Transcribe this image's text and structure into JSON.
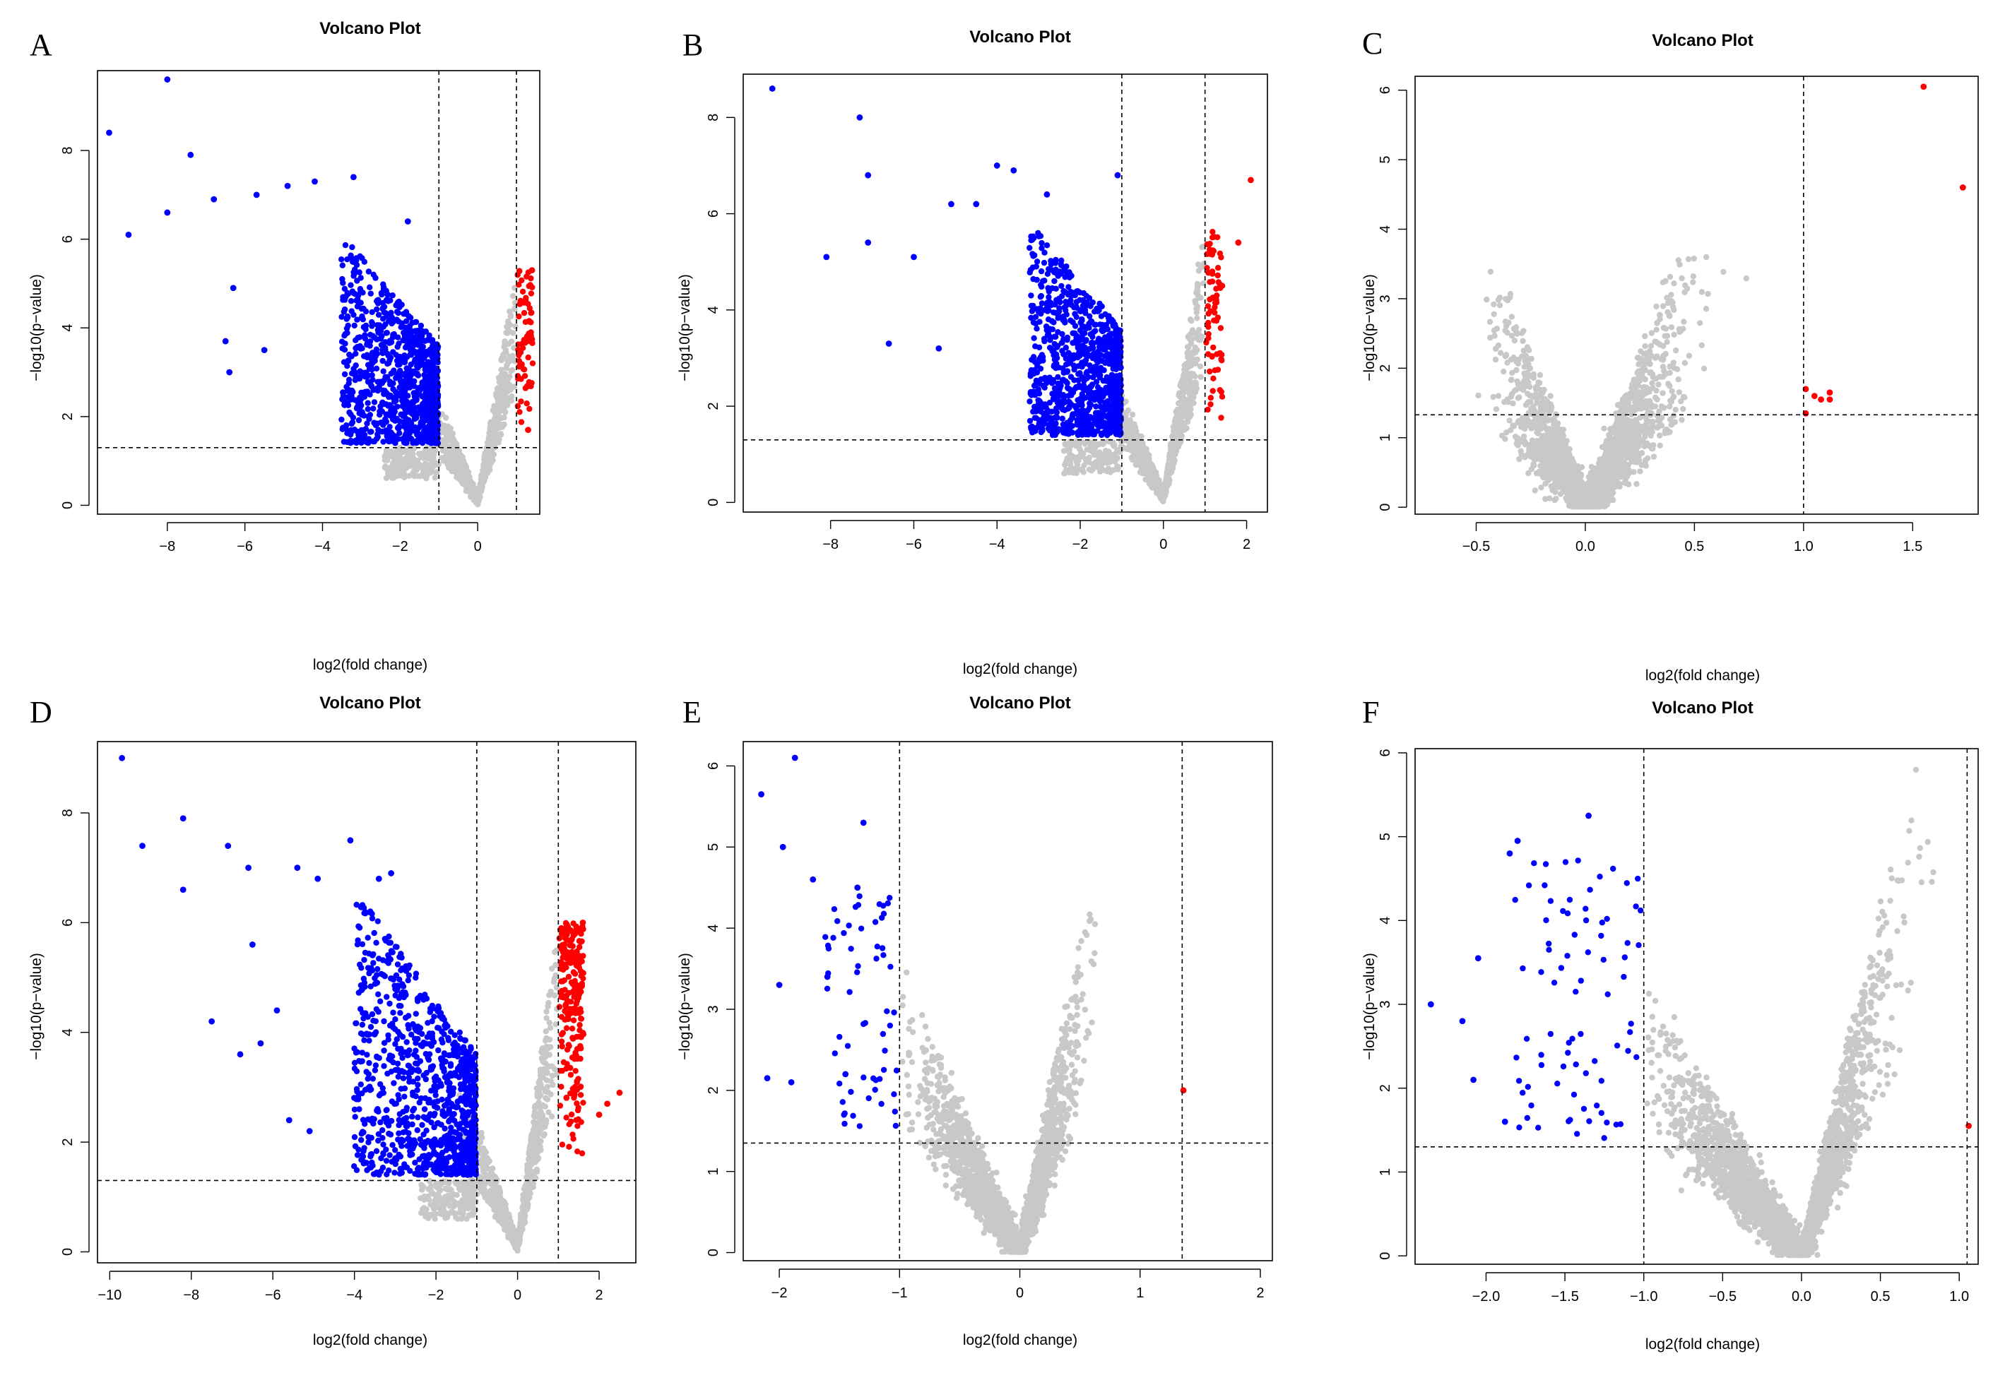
{
  "figure": {
    "description_free": true
  },
  "colors": {
    "down": "#0000ff",
    "up": "#ff0000",
    "ns": "#c8c8c8"
  },
  "chart_data": [
    {
      "id": "A",
      "letter": "A",
      "type": "scatter",
      "title": "Volcano Plot",
      "xlabel": "log2(fold change)",
      "ylabel": "−log10(p−value)",
      "xlim": [
        -9.8,
        1.6
      ],
      "ylim": [
        -0.2,
        9.8
      ],
      "xticks": [
        -8,
        -6,
        -4,
        -2,
        0
      ],
      "xtick_labels": [
        "−8",
        "−6",
        "−4",
        "−2",
        "0"
      ],
      "yticks": [
        0,
        2,
        4,
        6,
        8
      ],
      "ytick_labels": [
        "0",
        "2",
        "4",
        "6",
        "8"
      ],
      "vlines": [
        -1,
        1
      ],
      "hline": 1.3,
      "up_range": [
        1,
        1.4
      ],
      "down_min": -3.5,
      "notable_points": [
        [
          -8,
          9.6
        ],
        [
          -9.5,
          8.4
        ],
        [
          -8,
          6.6
        ],
        [
          -9,
          6.1
        ],
        [
          -7.4,
          7.9
        ],
        [
          -6.8,
          6.9
        ],
        [
          -5.7,
          7.0
        ],
        [
          -4.9,
          7.2
        ],
        [
          -4.2,
          7.3
        ],
        [
          -3.2,
          7.4
        ],
        [
          -6.4,
          3.0
        ],
        [
          -6.5,
          3.7
        ],
        [
          -5.5,
          3.5
        ],
        [
          -6.3,
          4.9
        ],
        [
          -1.8,
          6.4
        ]
      ],
      "red_points": [
        [
          1.4,
          5.3
        ],
        [
          1.3,
          1.7
        ]
      ]
    },
    {
      "id": "B",
      "letter": "B",
      "type": "scatter",
      "title": "Volcano Plot",
      "xlabel": "log2(fold change)",
      "ylabel": "−log10(p−value)",
      "xlim": [
        -10.1,
        2.5
      ],
      "ylim": [
        -0.2,
        8.9
      ],
      "xticks": [
        -8,
        -6,
        -4,
        -2,
        0,
        2
      ],
      "xtick_labels": [
        "−8",
        "−6",
        "−4",
        "−2",
        "0",
        "2"
      ],
      "yticks": [
        0,
        2,
        4,
        6,
        8
      ],
      "ytick_labels": [
        "0",
        "2",
        "4",
        "6",
        "8"
      ],
      "vlines": [
        -1,
        1
      ],
      "hline": 1.3,
      "up_range": [
        1,
        1.4
      ],
      "down_min": -3.2,
      "notable_points": [
        [
          -9.4,
          8.6
        ],
        [
          -7.3,
          8.0
        ],
        [
          -7.1,
          6.8
        ],
        [
          -8.1,
          5.1
        ],
        [
          -7.1,
          5.4
        ],
        [
          -6.6,
          3.3
        ],
        [
          -6.0,
          5.1
        ],
        [
          -5.4,
          3.2
        ],
        [
          -4,
          7.0
        ],
        [
          -3.6,
          6.9
        ],
        [
          -4.5,
          6.2
        ],
        [
          -5.1,
          6.2
        ],
        [
          -2.8,
          6.4
        ],
        [
          -1.1,
          6.8
        ]
      ],
      "red_points": [
        [
          2.1,
          6.7
        ],
        [
          1.8,
          5.4
        ]
      ]
    },
    {
      "id": "C",
      "letter": "C",
      "type": "scatter",
      "title": "Volcano Plot",
      "xlabel": "log2(fold change)",
      "ylabel": "−log10(p−value)",
      "xlim": [
        -0.78,
        1.8
      ],
      "ylim": [
        -0.1,
        6.2
      ],
      "xticks": [
        -0.5,
        0.0,
        0.5,
        1.0,
        1.5
      ],
      "xtick_labels": [
        "−0.5",
        "0.0",
        "0.5",
        "1.0",
        "1.5"
      ],
      "yticks": [
        0,
        1,
        2,
        3,
        4,
        5,
        6
      ],
      "ytick_labels": [
        "0",
        "1",
        "2",
        "3",
        "4",
        "5",
        "6"
      ],
      "vlines": [
        1.0
      ],
      "hline": 1.33,
      "notable_points": [],
      "red_points": [
        [
          1.55,
          6.05
        ],
        [
          1.73,
          4.6
        ],
        [
          1.01,
          1.7
        ],
        [
          1.01,
          1.35
        ],
        [
          1.05,
          1.6
        ],
        [
          1.08,
          1.55
        ],
        [
          1.12,
          1.65
        ],
        [
          1.12,
          1.55
        ]
      ]
    },
    {
      "id": "D",
      "letter": "D",
      "type": "scatter",
      "title": "Volcano Plot",
      "xlabel": "log2(fold change)",
      "ylabel": "−log10(p−value)",
      "xlim": [
        -10.3,
        2.9
      ],
      "ylim": [
        -0.2,
        9.3
      ],
      "xticks": [
        -10,
        -8,
        -6,
        -4,
        -2,
        0,
        2
      ],
      "xtick_labels": [
        "−10",
        "−8",
        "−6",
        "−4",
        "−2",
        "0",
        "2"
      ],
      "yticks": [
        0,
        2,
        4,
        6,
        8
      ],
      "ytick_labels": [
        "0",
        "2",
        "4",
        "6",
        "8"
      ],
      "vlines": [
        -1,
        1
      ],
      "hline": 1.3,
      "up_range": [
        1,
        1.6
      ],
      "down_min": -4.0,
      "notable_points": [
        [
          -9.7,
          9.0
        ],
        [
          -9.2,
          7.4
        ],
        [
          -8.2,
          7.9
        ],
        [
          -8.2,
          6.6
        ],
        [
          -7.1,
          7.4
        ],
        [
          -6.6,
          7.0
        ],
        [
          -6.5,
          5.6
        ],
        [
          -5.4,
          7.0
        ],
        [
          -4.9,
          6.8
        ],
        [
          -4.1,
          7.5
        ],
        [
          -7.5,
          4.2
        ],
        [
          -6.8,
          3.6
        ],
        [
          -6.3,
          3.8
        ],
        [
          -5.9,
          4.4
        ],
        [
          -5.6,
          2.4
        ],
        [
          -5.1,
          2.2
        ],
        [
          -3.1,
          6.9
        ],
        [
          -3.4,
          6.8
        ]
      ],
      "red_points": [
        [
          2.5,
          2.9
        ],
        [
          2.2,
          2.7
        ],
        [
          2.0,
          2.5
        ],
        [
          1.6,
          6.0
        ]
      ]
    },
    {
      "id": "E",
      "letter": "E",
      "type": "scatter",
      "title": "Volcano Plot",
      "xlabel": "log2(fold change)",
      "ylabel": "−log10(p−value)",
      "xlim": [
        -2.3,
        2.1
      ],
      "ylim": [
        -0.1,
        6.3
      ],
      "xticks": [
        -2,
        -1,
        0,
        1,
        2
      ],
      "xtick_labels": [
        "−2",
        "−1",
        "0",
        "1",
        "2"
      ],
      "yticks": [
        0,
        1,
        2,
        3,
        4,
        5,
        6
      ],
      "ytick_labels": [
        "0",
        "1",
        "2",
        "3",
        "4",
        "5",
        "6"
      ],
      "vlines": [
        -1,
        1.35
      ],
      "hline": 1.35,
      "notable_points": [
        [
          -1.87,
          6.1
        ],
        [
          -2.15,
          5.65
        ],
        [
          -1.97,
          5.0
        ],
        [
          -1.3,
          5.3
        ],
        [
          -1.9,
          2.1
        ],
        [
          -2.1,
          2.15
        ],
        [
          -2.0,
          3.3
        ],
        [
          -1.72,
          4.6
        ],
        [
          -1.6,
          3.4
        ],
        [
          -1.45,
          2.2
        ],
        [
          -1.35,
          4.5
        ]
      ],
      "red_points": [
        [
          1.36,
          2.0
        ]
      ]
    },
    {
      "id": "F",
      "letter": "F",
      "type": "scatter",
      "title": "Volcano Plot",
      "xlabel": "log2(fold change)",
      "ylabel": "−log10(p−value)",
      "xlim": [
        -2.45,
        1.12
      ],
      "ylim": [
        -0.1,
        6.05
      ],
      "xticks": [
        -2.0,
        -1.5,
        -1.0,
        -0.5,
        0.0,
        0.5,
        1.0
      ],
      "xtick_labels": [
        "−2.0",
        "−1.5",
        "−1.0",
        "−0.5",
        "0.0",
        "0.5",
        "1.0"
      ],
      "yticks": [
        0,
        1,
        2,
        3,
        4,
        5,
        6
      ],
      "ytick_labels": [
        "0",
        "1",
        "2",
        "3",
        "4",
        "5",
        "6"
      ],
      "vlines": [
        -1.0,
        1.05
      ],
      "hline": 1.3,
      "notable_points": [
        [
          -2.35,
          3.0
        ],
        [
          -2.15,
          2.8
        ],
        [
          -2.08,
          2.1
        ],
        [
          -2.05,
          3.55
        ],
        [
          -1.8,
          4.95
        ],
        [
          -1.85,
          4.8
        ],
        [
          -1.35,
          5.25
        ],
        [
          -1.88,
          1.6
        ]
      ],
      "red_points": [
        [
          1.06,
          1.55
        ]
      ]
    }
  ]
}
